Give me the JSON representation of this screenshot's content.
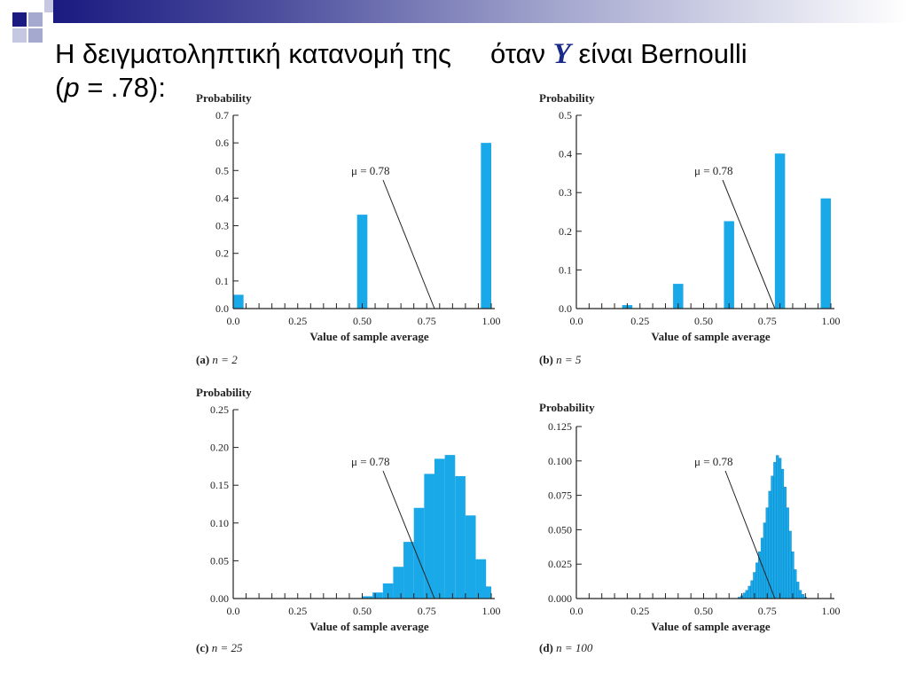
{
  "slide": {
    "title_line1_part1": "Η δειγματοληπτική κατανομή της",
    "title_line1_part2": "όταν",
    "title_var": "Y",
    "title_line1_part3": "είναι Bernoulli",
    "title_line2_open": "(",
    "title_line2_p": "p",
    "title_line2_rest": " = .78):"
  },
  "colors": {
    "bar": "#1aa9e8",
    "accent": "#1a2a8a",
    "deco_dark": "#1a1a80",
    "deco_light": "#a6a9cf"
  },
  "chart_data": [
    {
      "type": "bar",
      "ylabel": "Probability",
      "xlabel": "Value of sample average",
      "caption_letter": "(a)",
      "caption_n": "n = 2",
      "annotation": "μ = 0.78",
      "mu": 0.78,
      "xlim": [
        0,
        1
      ],
      "ylim": [
        0,
        0.7
      ],
      "yticks": [
        "0.0",
        "0.1",
        "0.2",
        "0.3",
        "0.4",
        "0.5",
        "0.6",
        "0.7"
      ],
      "xticks": [
        "0.0",
        "0.25",
        "0.50",
        "0.75",
        "1.00"
      ],
      "bar_width": 0.04,
      "x": [
        0.0,
        0.5,
        1.0
      ],
      "values": [
        0.05,
        0.34,
        0.6
      ]
    },
    {
      "type": "bar",
      "ylabel": "Probability",
      "xlabel": "Value of sample average",
      "caption_letter": "(b)",
      "caption_n": "n = 5",
      "annotation": "μ = 0.78",
      "mu": 0.78,
      "xlim": [
        0,
        1
      ],
      "ylim": [
        0,
        0.5
      ],
      "yticks": [
        "0.0",
        "0.1",
        "0.2",
        "0.3",
        "0.4",
        "0.5"
      ],
      "xticks": [
        "0.0",
        "0.25",
        "0.50",
        "0.75",
        "1.00"
      ],
      "bar_width": 0.04,
      "x": [
        0.0,
        0.2,
        0.4,
        0.6,
        0.8,
        1.0
      ],
      "values": [
        0.001,
        0.009,
        0.064,
        0.226,
        0.401,
        0.285
      ]
    },
    {
      "type": "bar",
      "ylabel": "Probability",
      "xlabel": "Value of sample average",
      "caption_letter": "(c)",
      "caption_n": "n = 25",
      "annotation": "μ = 0.78",
      "mu": 0.78,
      "xlim": [
        0,
        1
      ],
      "ylim": [
        0,
        0.25
      ],
      "yticks": [
        "0.00",
        "0.05",
        "0.10",
        "0.15",
        "0.20",
        "0.25"
      ],
      "xticks": [
        "0.0",
        "0.25",
        "0.50",
        "0.75",
        "1.00"
      ],
      "bar_width": 0.04,
      "x": [
        0.52,
        0.56,
        0.6,
        0.64,
        0.68,
        0.72,
        0.76,
        0.8,
        0.84,
        0.88,
        0.92,
        0.96,
        1.0
      ],
      "values": [
        0.003,
        0.008,
        0.02,
        0.042,
        0.075,
        0.12,
        0.165,
        0.185,
        0.19,
        0.162,
        0.11,
        0.052,
        0.016
      ]
    },
    {
      "type": "bar",
      "ylabel": "Probability",
      "xlabel": "Value of sample average",
      "caption_letter": "(d)",
      "caption_n": "n = 100",
      "annotation": "μ = 0.78",
      "mu": 0.78,
      "xlim": [
        0,
        1
      ],
      "ylim": [
        0,
        0.125
      ],
      "yticks": [
        "0.000",
        "0.025",
        "0.050",
        "0.075",
        "0.100",
        "0.125"
      ],
      "xticks": [
        "0.0",
        "0.25",
        "0.50",
        "0.75",
        "1.00"
      ],
      "bar_width": 0.01,
      "x": [
        0.64,
        0.65,
        0.66,
        0.67,
        0.68,
        0.69,
        0.7,
        0.71,
        0.72,
        0.73,
        0.74,
        0.75,
        0.76,
        0.77,
        0.78,
        0.79,
        0.8,
        0.81,
        0.82,
        0.83,
        0.84,
        0.85,
        0.86,
        0.87,
        0.88,
        0.89,
        0.9
      ],
      "values": [
        0.001,
        0.002,
        0.004,
        0.006,
        0.009,
        0.013,
        0.019,
        0.026,
        0.034,
        0.044,
        0.055,
        0.066,
        0.078,
        0.089,
        0.099,
        0.104,
        0.102,
        0.094,
        0.081,
        0.066,
        0.049,
        0.034,
        0.021,
        0.012,
        0.006,
        0.003,
        0.001
      ]
    }
  ]
}
